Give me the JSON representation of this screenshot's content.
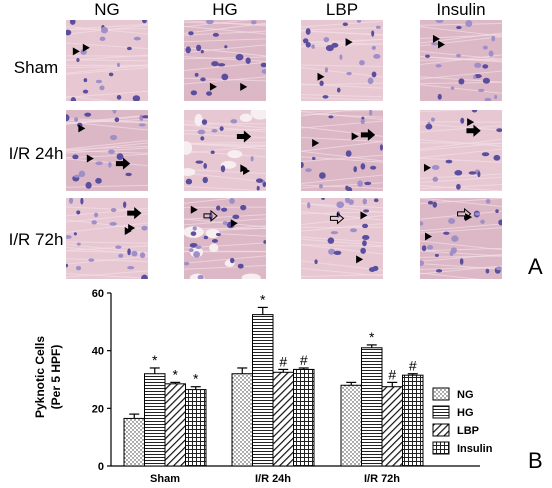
{
  "figure": {
    "panel_a": {
      "columns": [
        "NG",
        "HG",
        "LBP",
        "Insulin"
      ],
      "rows": [
        "Sham",
        "I/R 24h",
        "I/R 72h"
      ],
      "letter": "A",
      "tile_colors": {
        "background": "#e7c8d2",
        "background_alt": "#dcb7c6",
        "nucleus": "#5a4e9e",
        "nucleus_light": "#9f8fc9",
        "vacuole": "#f6eef0"
      },
      "marker_icons": [
        "solid-arrowhead-icon",
        "solid-arrow-icon",
        "open-arrow-icon"
      ]
    },
    "panel_b": {
      "letter": "B"
    }
  },
  "chart_data": {
    "type": "bar",
    "categories": [
      "Sham",
      "I/R 24h",
      "I/R 72h"
    ],
    "ylabel": "Pyknotic Cells (Per 5 HPF)",
    "ylabel_lines": [
      "Pyknotic Cells",
      "(Per 5 HPF)"
    ],
    "ylim": [
      0,
      60
    ],
    "yticks": [
      0,
      20,
      40,
      60
    ],
    "xlabel": "",
    "grid": false,
    "legend_position": "right",
    "series": [
      {
        "name": "NG",
        "pattern": "dots",
        "values": [
          16.5,
          32,
          28
        ],
        "errors": [
          1.5,
          2,
          1
        ],
        "marks": [
          "",
          "",
          ""
        ]
      },
      {
        "name": "HG",
        "pattern": "horizontal",
        "values": [
          32,
          52.5,
          41
        ],
        "errors": [
          2,
          2.5,
          1
        ],
        "marks": [
          "*",
          "*",
          "*"
        ]
      },
      {
        "name": "LBP",
        "pattern": "diagonal",
        "values": [
          28.5,
          32.5,
          27.5
        ],
        "errors": [
          0.5,
          1,
          1.5
        ],
        "marks": [
          "*",
          "#",
          "#"
        ]
      },
      {
        "name": "Insulin",
        "pattern": "grid",
        "values": [
          26.5,
          33.5,
          31.5
        ],
        "errors": [
          1,
          0.5,
          0.5
        ],
        "marks": [
          "*",
          "#",
          "#"
        ]
      }
    ]
  }
}
